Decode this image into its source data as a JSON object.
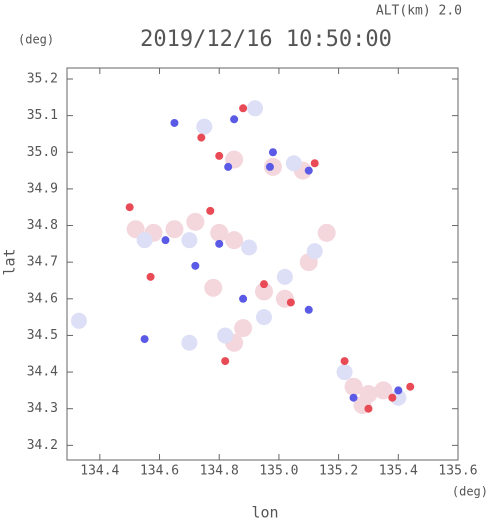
{
  "chart_data": {
    "type": "scatter",
    "annotation": "ALT(km)  2.0",
    "y_unit": "(deg)",
    "title": "2019/12/16 10:50:00",
    "ylabel": "lat",
    "xlabel": "lon",
    "x_unit": "(deg)",
    "xlim": [
      134.29,
      135.6
    ],
    "ylim": [
      34.16,
      35.23
    ],
    "xticks": [
      134.4,
      134.6,
      134.8,
      {
        "value": 135,
        "label": "135.0"
      },
      135.2,
      135.4,
      135.6
    ],
    "yticks": [
      34.2,
      34.3,
      34.4,
      34.5,
      34.6,
      34.7,
      34.8,
      34.9,
      {
        "value": 35,
        "label": "35.0"
      },
      35.1,
      35.2
    ],
    "series": [
      {
        "color": "#f4d6dd",
        "x": [
          134.52,
          134.58,
          134.65,
          134.72,
          134.8,
          134.85,
          134.95,
          135.02,
          134.88,
          134.85,
          135.25,
          135.3,
          135.28,
          135.35,
          134.85,
          134.98,
          135.08,
          135.16,
          135.1,
          134.78
        ],
        "values": [
          34.79,
          34.78,
          34.79,
          34.81,
          34.78,
          34.76,
          34.62,
          34.6,
          34.52,
          34.48,
          34.36,
          34.34,
          34.31,
          34.35,
          34.98,
          34.96,
          34.95,
          34.78,
          34.7,
          34.63
        ]
      },
      {
        "color": "#dcdff6",
        "x": [
          134.55,
          134.7,
          134.9,
          134.95,
          134.82,
          135.02,
          135.12,
          134.33,
          135.22,
          135.4,
          134.75,
          134.92,
          135.05,
          134.7
        ],
        "values": [
          34.76,
          34.76,
          34.74,
          34.55,
          34.5,
          34.66,
          34.73,
          34.54,
          34.4,
          34.33,
          35.07,
          35.12,
          34.97,
          34.48
        ]
      },
      {
        "color": "#e84b55",
        "x": [
          134.5,
          134.77,
          134.74,
          134.8,
          134.95,
          135.04,
          135.22,
          135.3,
          135.38,
          135.44,
          135.12,
          134.57,
          134.88,
          134.82
        ],
        "values": [
          34.85,
          34.84,
          35.04,
          34.99,
          34.64,
          34.59,
          34.43,
          34.3,
          34.33,
          34.36,
          34.97,
          34.66,
          35.12,
          34.43
        ]
      },
      {
        "color": "#5a5ae6",
        "x": [
          134.65,
          134.83,
          134.97,
          135.1,
          134.62,
          134.8,
          134.72,
          135.1,
          134.88,
          135.25,
          135.4,
          134.55,
          134.98,
          134.85
        ],
        "values": [
          35.08,
          34.96,
          34.96,
          34.95,
          34.76,
          34.75,
          34.69,
          34.57,
          34.6,
          34.33,
          34.35,
          34.49,
          35.0,
          35.09
        ]
      }
    ]
  }
}
